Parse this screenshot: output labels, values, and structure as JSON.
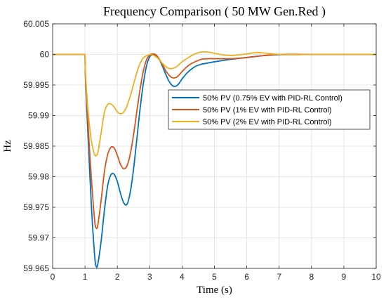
{
  "chart_data": {
    "type": "line",
    "title": "Frequency Comparison ( 50 MW Gen.Red )",
    "xlabel": "Time (s)",
    "ylabel": "Hz",
    "xlim": [
      0,
      10
    ],
    "ylim": [
      59.965,
      60.005
    ],
    "xticks": [
      "0",
      "1",
      "2",
      "3",
      "4",
      "5",
      "6",
      "7",
      "8",
      "9",
      "10"
    ],
    "yticks": [
      "59.965",
      "59.97",
      "59.975",
      "59.98",
      "59.985",
      "59.99",
      "59.995",
      "60",
      "60.005"
    ],
    "grid": true,
    "legend_position": "upper right",
    "series": [
      {
        "name": "50% PV (0.75% EV with PID-RL Control)",
        "color": "#0072BD",
        "x": [
          0,
          1.0,
          1.02,
          1.1,
          1.2,
          1.3,
          1.35,
          1.4,
          1.5,
          1.6,
          1.7,
          1.8,
          1.9,
          2.0,
          2.1,
          2.2,
          2.3,
          2.4,
          2.5,
          2.6,
          2.7,
          2.8,
          2.9,
          3.0,
          3.1,
          3.2,
          3.3,
          3.4,
          3.5,
          3.6,
          3.7,
          3.8,
          3.9,
          4.0,
          4.2,
          4.4,
          4.6,
          4.8,
          5.0,
          5.5,
          6.0,
          6.5,
          7.0,
          8.0,
          9.0,
          10.0
        ],
        "y": [
          60.0,
          60.0,
          59.9952,
          59.986,
          59.975,
          59.967,
          59.9653,
          59.9658,
          59.9695,
          59.9745,
          59.9785,
          59.9803,
          59.9804,
          59.9792,
          59.9772,
          59.9757,
          59.9755,
          59.9775,
          59.9812,
          59.986,
          59.991,
          59.9951,
          59.9981,
          59.9996,
          59.99995,
          59.9998,
          59.9991,
          59.998,
          59.9967,
          59.9956,
          59.9949,
          59.9948,
          59.9952,
          59.996,
          59.9972,
          59.998,
          59.9984,
          59.9986,
          59.9988,
          59.9992,
          59.9995,
          59.9998,
          59.99995,
          60.0,
          60.0,
          60.0
        ]
      },
      {
        "name": "50% PV (1% EV with PID-RL Control)",
        "color": "#D95319",
        "x": [
          0,
          1.0,
          1.02,
          1.1,
          1.2,
          1.3,
          1.35,
          1.4,
          1.5,
          1.6,
          1.7,
          1.8,
          1.9,
          2.0,
          2.1,
          2.2,
          2.3,
          2.4,
          2.5,
          2.6,
          2.7,
          2.8,
          2.9,
          3.0,
          3.1,
          3.2,
          3.3,
          3.4,
          3.5,
          3.6,
          3.7,
          3.8,
          3.9,
          4.0,
          4.2,
          4.4,
          4.6,
          4.8,
          5.0,
          5.5,
          6.0,
          6.5,
          7.0,
          8.0,
          9.0,
          10.0
        ],
        "y": [
          60.0,
          60.0,
          59.9958,
          59.988,
          59.9795,
          59.9728,
          59.9716,
          59.9722,
          59.9762,
          59.9808,
          59.9836,
          59.9848,
          59.9847,
          59.9835,
          59.982,
          59.9813,
          59.9818,
          59.9837,
          59.9868,
          59.9906,
          59.9942,
          59.9972,
          59.9991,
          59.9999,
          60.0001,
          59.9999,
          59.9992,
          59.9983,
          59.9973,
          59.9966,
          59.9962,
          59.9962,
          59.9966,
          59.9972,
          59.9982,
          59.9988,
          59.9992,
          59.9993,
          59.9993,
          59.9993,
          59.9995,
          59.9998,
          60.0,
          60.0,
          60.0,
          60.0
        ]
      },
      {
        "name": "50% PV (2% EV with PID-RL Control)",
        "color": "#EDB120",
        "x": [
          0,
          1.0,
          1.02,
          1.1,
          1.2,
          1.3,
          1.35,
          1.4,
          1.5,
          1.6,
          1.7,
          1.8,
          1.9,
          2.0,
          2.1,
          2.2,
          2.3,
          2.4,
          2.5,
          2.6,
          2.7,
          2.8,
          2.9,
          3.0,
          3.1,
          3.2,
          3.3,
          3.4,
          3.5,
          3.6,
          3.7,
          3.8,
          3.9,
          4.0,
          4.2,
          4.4,
          4.6,
          4.8,
          5.0,
          5.3,
          5.6,
          6.0,
          6.3,
          6.6,
          7.0,
          7.5,
          8.0,
          9.0,
          10.0
        ],
        "y": [
          60.0,
          60.0,
          59.9965,
          59.9905,
          59.9858,
          59.9836,
          59.9835,
          59.984,
          59.9872,
          59.9905,
          59.9918,
          59.9919,
          59.9914,
          59.9906,
          59.9903,
          59.9906,
          59.9916,
          59.9932,
          59.9951,
          59.997,
          59.9985,
          59.9994,
          59.9998,
          59.99995,
          59.9999,
          59.9996,
          59.9991,
          59.9985,
          59.998,
          59.9977,
          59.9977,
          59.9979,
          59.9983,
          59.9988,
          59.9995,
          60.0001,
          60.0004,
          60.0004,
          60.0002,
          59.9999,
          59.99985,
          60.0001,
          60.0003,
          60.0002,
          60.0,
          59.99995,
          60.0,
          60.0,
          60.0
        ]
      }
    ]
  }
}
